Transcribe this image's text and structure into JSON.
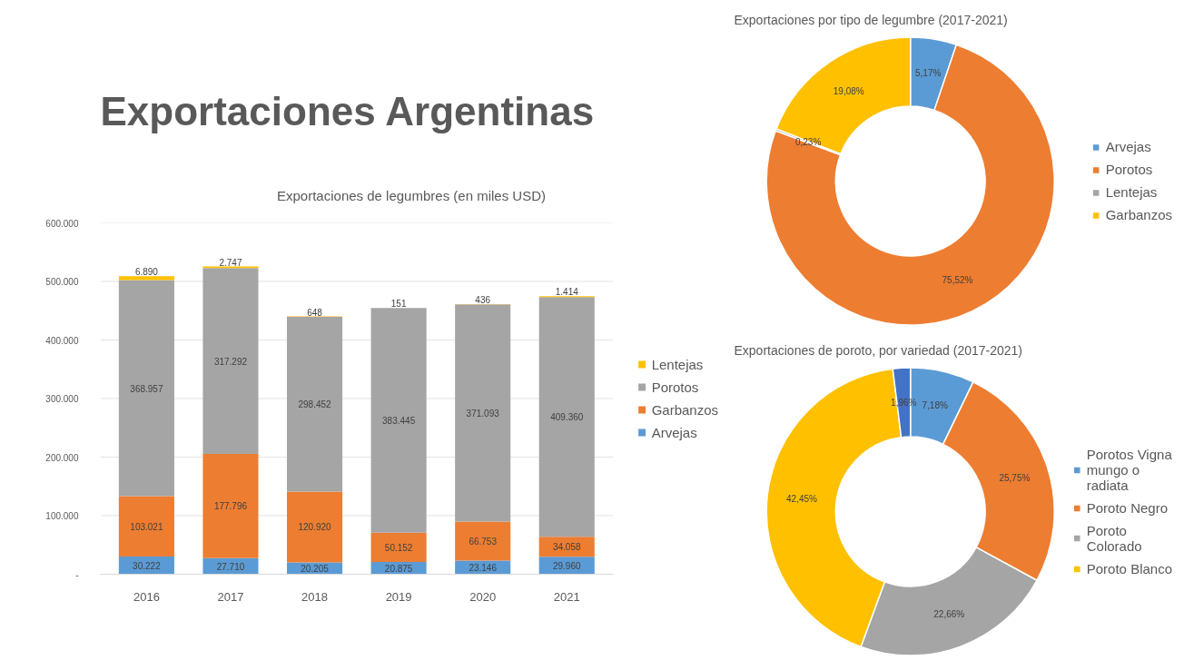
{
  "chart_data": [
    {
      "type": "bar",
      "title": "Exportaciones Argentinas",
      "subtitle": "Exportaciones de legumbres (en miles USD)",
      "categories": [
        "2016",
        "2017",
        "2018",
        "2019",
        "2020",
        "2021"
      ],
      "stacked": true,
      "series": [
        {
          "name": "Arvejas",
          "color": "#5b9bd5",
          "values": [
            30222,
            27710,
            20205,
            20875,
            23146,
            29960
          ],
          "value_labels": [
            "30.222",
            "27.710",
            "20.205",
            "20.875",
            "23.146",
            "29.960"
          ]
        },
        {
          "name": "Garbanzos",
          "color": "#ed7d31",
          "values": [
            103021,
            177796,
            120920,
            50152,
            66753,
            34058
          ],
          "value_labels": [
            "103.021",
            "177.796",
            "120.920",
            "50.152",
            "66.753",
            "34.058"
          ]
        },
        {
          "name": "Porotos",
          "color": "#a5a5a5",
          "values": [
            368957,
            317292,
            298452,
            383445,
            371093,
            409360
          ],
          "value_labels": [
            "368.957",
            "317.292",
            "298.452",
            "383.445",
            "371.093",
            "409.360"
          ]
        },
        {
          "name": "Lentejas",
          "color": "#ffc000",
          "values": [
            6890,
            2747,
            648,
            151,
            436,
            1414
          ],
          "value_labels": [
            "6.890",
            "2.747",
            "648",
            "151",
            "436",
            "1.414"
          ]
        }
      ],
      "ylim": [
        0,
        600000
      ],
      "yticks": [
        {
          "value": 0,
          "label": "-"
        },
        {
          "value": 100000,
          "label": "100.000"
        },
        {
          "value": 200000,
          "label": "200.000"
        },
        {
          "value": 300000,
          "label": "300.000"
        },
        {
          "value": 400000,
          "label": "400.000"
        },
        {
          "value": 500000,
          "label": "500.000"
        },
        {
          "value": 600000,
          "label": "600.000"
        }
      ],
      "grid": "y",
      "legend": "right"
    },
    {
      "type": "donut",
      "title": "Exportaciones por tipo de legumbre (2017-2021)",
      "categories": [
        "Arvejas",
        "Porotos",
        "Lentejas",
        "Garbanzos"
      ],
      "values": [
        5.17,
        75.52,
        0.23,
        19.08
      ],
      "colors": [
        "#5b9bd5",
        "#ed7d31",
        "#a5a5a5",
        "#ffc000"
      ],
      "value_labels": [
        "5,17%",
        "75,52%",
        "0,23%",
        "19,08%"
      ],
      "legend": "right"
    },
    {
      "type": "donut",
      "title": "Exportaciones de poroto, por variedad (2017-2021)",
      "categories": [
        "Porotos Vigna mungo o radiata",
        "Poroto Negro",
        "Poroto Colorado",
        "Poroto Blanco",
        null
      ],
      "values": [
        7.18,
        25.75,
        22.66,
        42.45,
        1.96
      ],
      "colors": [
        "#5b9bd5",
        "#ed7d31",
        "#a5a5a5",
        "#ffc000",
        "#4472c4"
      ],
      "value_labels": [
        "7,18%",
        "25,75%",
        "22,66%",
        "42,45%",
        "1,96%"
      ],
      "legend": "right"
    }
  ]
}
